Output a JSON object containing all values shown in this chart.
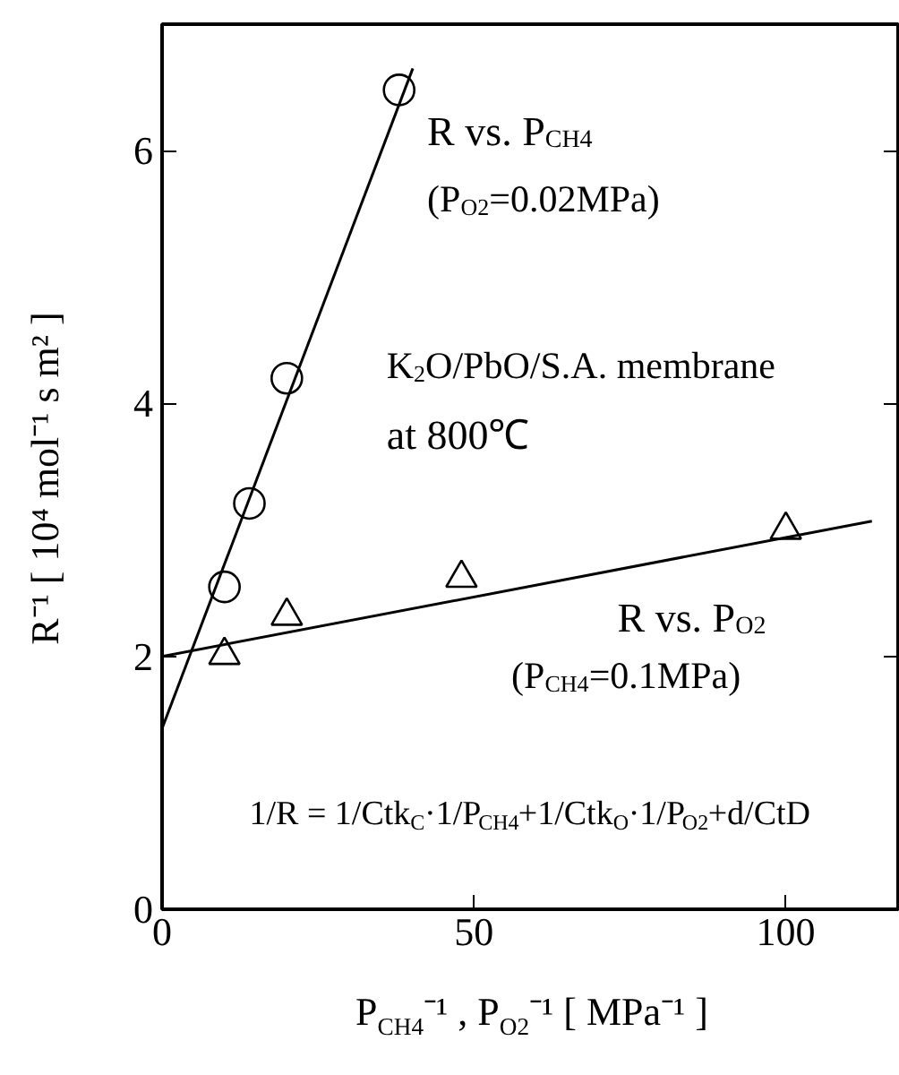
{
  "chart_data": {
    "type": "scatter",
    "xlabel": "P$_{CH4}$⁻¹ , P$_{O2}$⁻¹  [ MPa⁻¹ ]",
    "ylabel": "R⁻¹ [ 10⁴ mol⁻¹ s m² ]",
    "xlim": [
      0,
      118
    ],
    "ylim": [
      0,
      7
    ],
    "xticks": [
      0,
      50,
      100
    ],
    "yticks": [
      0,
      2,
      4,
      6
    ],
    "grid": false,
    "series": [
      {
        "marker": "circle",
        "color": "#000000",
        "x": [
          10,
          14,
          20,
          38
        ],
        "values": [
          2.55,
          3.21,
          4.2,
          6.48
        ]
      },
      {
        "type": "line",
        "color": "#000000",
        "x": [
          0,
          40.2
        ],
        "values": [
          1.43,
          6.65
        ]
      },
      {
        "marker": "triangle",
        "color": "#000000",
        "x": [
          10,
          20,
          48,
          100
        ],
        "values": [
          2.01,
          2.32,
          2.62,
          3.0
        ]
      },
      {
        "type": "line",
        "color": "#000000",
        "x": [
          0,
          113.8
        ],
        "values": [
          2.0,
          3.07
        ]
      }
    ],
    "annotations": [
      "R vs. P$_{CH4}$",
      "(P$_{O2}$=0.02MPa)",
      "K$_{2}$O/PbO/S.A. membrane",
      "at 800℃",
      "R vs. P$_{O2}$",
      "(P$_{CH4}$=0.1MPa)",
      "1/R = 1/Ctk$_{C}$·1/P$_{CH4}$+1/Ctk$_{O}$·1/P$_{O2}$+d/CtD"
    ]
  }
}
